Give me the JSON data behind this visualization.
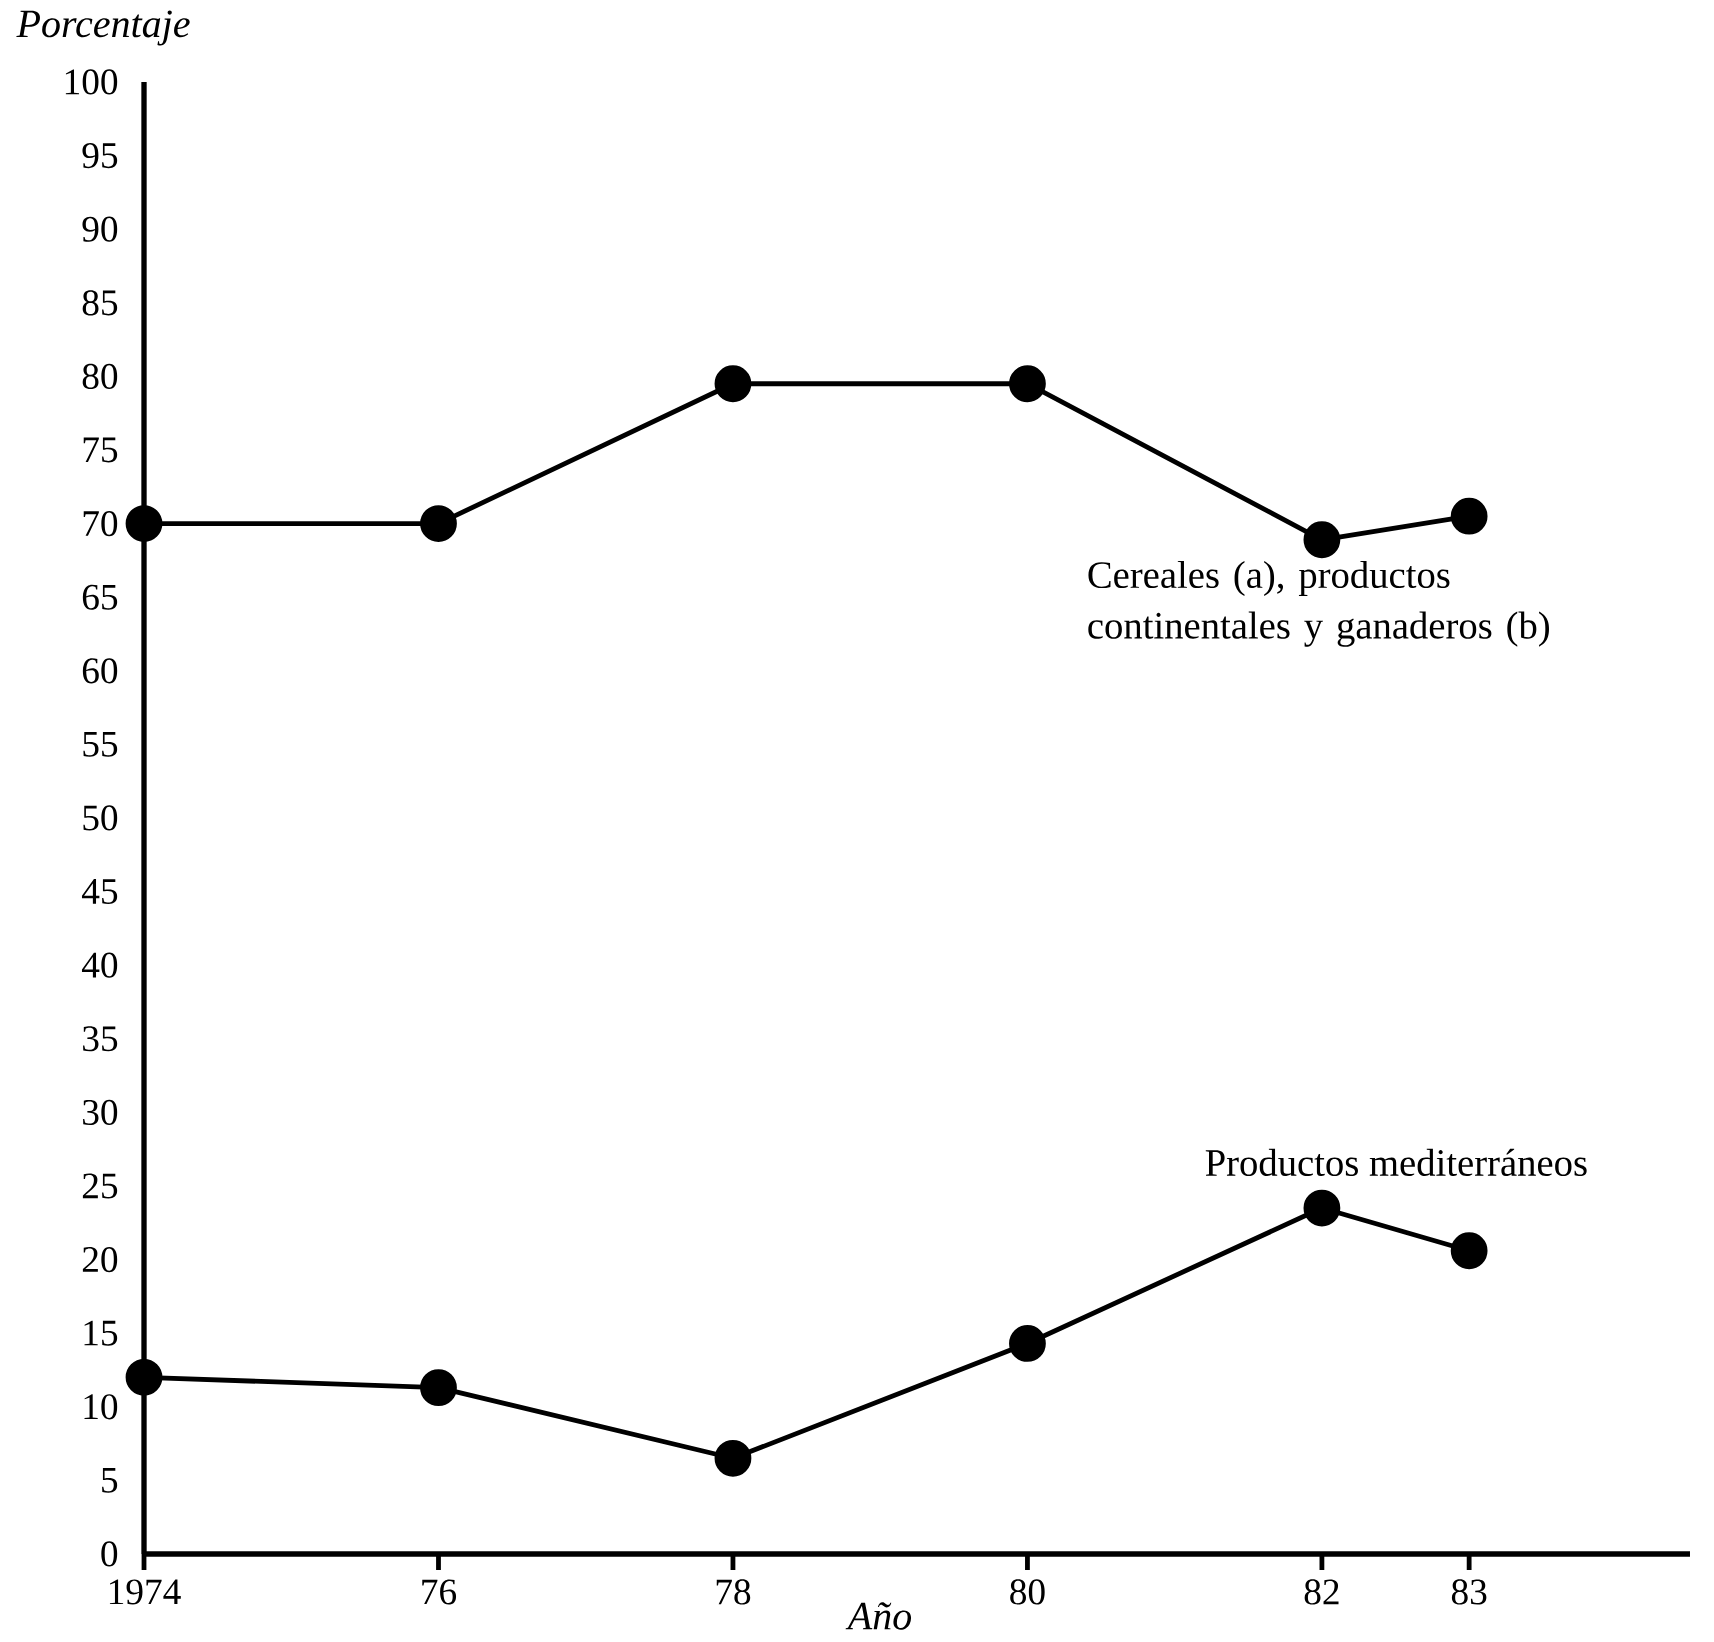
{
  "chart_data": {
    "type": "line",
    "xlabel": "Año",
    "ylabel": "Porcentaje",
    "x": [
      1974,
      1976,
      1978,
      1980,
      1982,
      1983
    ],
    "series": [
      {
        "name": "Cereales (a), productos continentales y ganaderos (b)",
        "color": "#000000",
        "values": [
          70,
          70,
          79.5,
          79.5,
          68.9,
          70.5
        ]
      },
      {
        "name": "Productos mediterráneos",
        "color": "#000000",
        "values": [
          12,
          11.3,
          6.5,
          14.3,
          23.5,
          20.6
        ]
      }
    ],
    "xlim": [
      1974,
      1984.5
    ],
    "xticks": [
      {
        "value": 1974,
        "label": "1974"
      },
      {
        "value": 1976,
        "label": "76"
      },
      {
        "value": 1978,
        "label": "78"
      },
      {
        "value": 1980,
        "label": "80"
      },
      {
        "value": 1982,
        "label": "82"
      },
      {
        "value": 1983,
        "label": "83"
      }
    ],
    "ylim": [
      0,
      100
    ],
    "yticks": [
      0,
      5,
      10,
      15,
      20,
      25,
      30,
      35,
      40,
      45,
      50,
      55,
      60,
      65,
      70,
      75,
      80,
      85,
      90,
      95,
      100
    ],
    "marker": "circle",
    "line_style": "solid"
  }
}
